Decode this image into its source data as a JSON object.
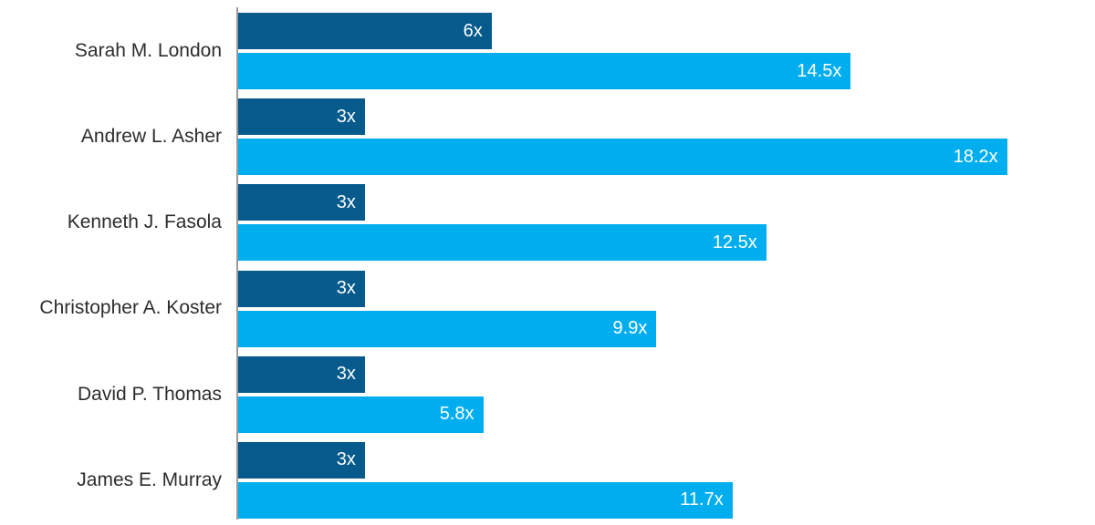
{
  "chart_data": {
    "type": "bar",
    "orientation": "horizontal",
    "title": "",
    "categories": [
      "Sarah M. London",
      "Andrew L. Asher",
      "Kenneth J. Fasola",
      "Christopher A. Koster",
      "David P. Thomas",
      "James E. Murray"
    ],
    "series": [
      {
        "name": "dark-blue-series",
        "color": "#065a8c",
        "values": [
          6,
          3,
          3,
          3,
          3,
          3
        ],
        "labels": [
          "6x",
          "3x",
          "3x",
          "3x",
          "3x",
          "3x"
        ]
      },
      {
        "name": "light-blue-series",
        "color": "#00aeef",
        "values": [
          14.5,
          18.2,
          12.5,
          9.9,
          5.8,
          11.7
        ],
        "labels": [
          "14.5x",
          "18.2x",
          "12.5x",
          "9.9x",
          "5.8x",
          "11.7x"
        ]
      }
    ],
    "xlim": [
      0,
      20
    ],
    "grid": false,
    "legend": false,
    "value_label_position": "inside-end",
    "colors": {
      "axis_line": "#9a9a9a",
      "category_label_text": "#2d2d2d",
      "value_label_text": "#ffffff",
      "background": "#ffffff"
    }
  }
}
